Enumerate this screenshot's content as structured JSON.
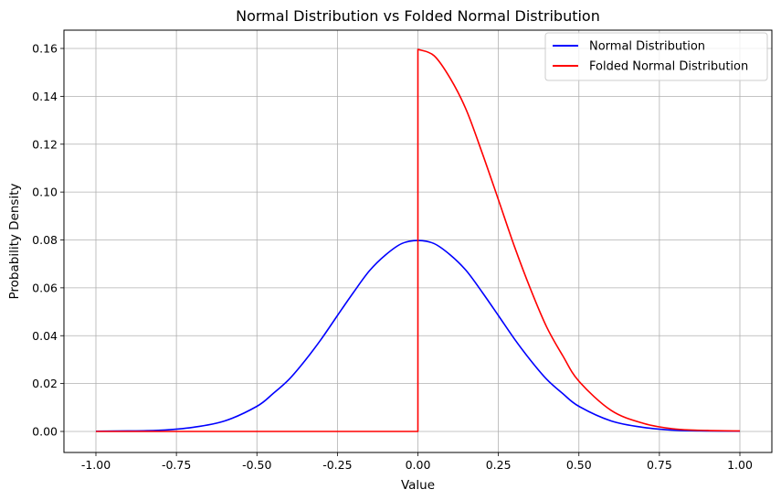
{
  "chart_data": {
    "type": "line",
    "title": "Normal Distribution vs Folded Normal Distribution",
    "xlabel": "Value",
    "ylabel": "Probability Density",
    "xlim": [
      -1.0,
      1.0
    ],
    "ylim": [
      0.0,
      0.16
    ],
    "xticks": [
      "-1.00",
      "-0.75",
      "-0.50",
      "-0.25",
      "0.00",
      "0.25",
      "0.50",
      "0.75",
      "1.00"
    ],
    "yticks": [
      "0.00",
      "0.02",
      "0.04",
      "0.06",
      "0.08",
      "0.10",
      "0.12",
      "0.14",
      "0.16"
    ],
    "grid": true,
    "legend_position": "top-right",
    "series": [
      {
        "name": "Normal Distribution",
        "color": "#0000ff",
        "x": [
          -1.0,
          -0.9,
          -0.8,
          -0.7,
          -0.6,
          -0.5,
          -0.45,
          -0.4,
          -0.35,
          -0.3,
          -0.25,
          -0.2,
          -0.15,
          -0.1,
          -0.05,
          0.0,
          0.05,
          0.1,
          0.15,
          0.2,
          0.25,
          0.3,
          0.35,
          0.4,
          0.45,
          0.5,
          0.6,
          0.7,
          0.8,
          0.9,
          1.0
        ],
        "y": [
          0.0001,
          0.0002,
          0.0005,
          0.0017,
          0.0044,
          0.0105,
          0.0158,
          0.0218,
          0.0297,
          0.0386,
          0.0484,
          0.0581,
          0.0672,
          0.0738,
          0.0785,
          0.0798,
          0.0785,
          0.0738,
          0.0672,
          0.0581,
          0.0484,
          0.0386,
          0.0297,
          0.0218,
          0.0158,
          0.0105,
          0.0044,
          0.0017,
          0.0005,
          0.0002,
          0.0001
        ]
      },
      {
        "name": "Folded Normal Distribution",
        "color": "#ff0000",
        "x": [
          -1.0,
          0.0,
          0.0,
          0.05,
          0.1,
          0.15,
          0.2,
          0.25,
          0.3,
          0.35,
          0.4,
          0.45,
          0.5,
          0.6,
          0.7,
          0.8,
          0.9,
          1.0
        ],
        "y": [
          0.0,
          0.0,
          0.1596,
          0.157,
          0.1476,
          0.1344,
          0.1162,
          0.0968,
          0.0772,
          0.0594,
          0.0436,
          0.0316,
          0.021,
          0.0088,
          0.0034,
          0.001,
          0.0004,
          0.0002
        ]
      }
    ]
  }
}
